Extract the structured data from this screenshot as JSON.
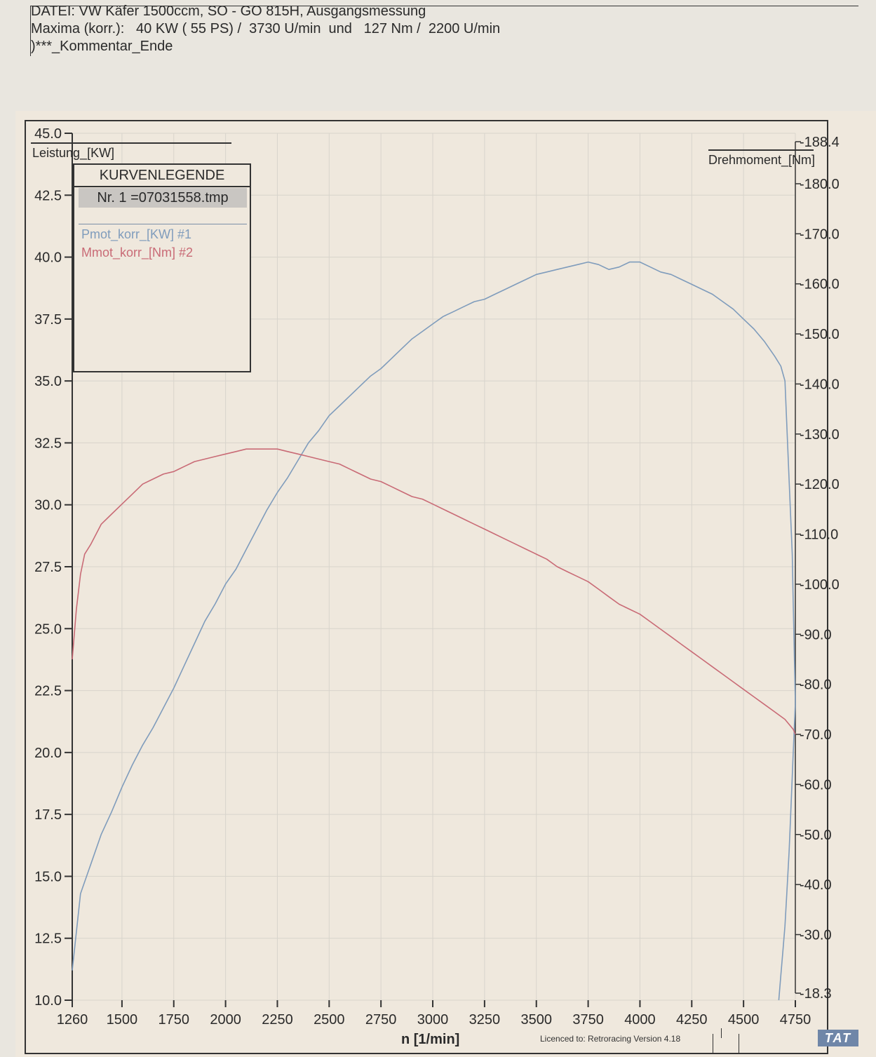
{
  "header": {
    "line1": "DATEI: VW Käfer 1500ccm, SO - GO 815H, Ausgangsmessung",
    "line2": "Maxima (korr.):   40 KW ( 55 PS) /  3730 U/min  und   127 Nm /  2200 U/min",
    "line3": ")***_Kommentar_Ende"
  },
  "legend": {
    "title": "KURVENLEGENDE",
    "file_label": "Nr. 1 =07031558.tmp",
    "series_1": "Pmot_korr_[KW] #1",
    "series_2": "Mmot_korr_[Nm] #2"
  },
  "footer": {
    "licence": "Licenced to: Retroracing   Version 4.18",
    "logo": "TAT"
  },
  "colors": {
    "power": "#7f9cbc",
    "torque": "#c96b76",
    "axis": "#333333",
    "grid": "#d8d4cc"
  },
  "chart_data": {
    "type": "line",
    "title": "",
    "xlabel": "n  [1/min]",
    "ylabel_left": "Leistung_[KW]",
    "ylabel_right": "Drehmoment_[Nm]",
    "x_ticks": [
      "1260",
      "1500",
      "1750",
      "2000",
      "2250",
      "2500",
      "2750",
      "3000",
      "3250",
      "3500",
      "3750",
      "4000",
      "4250",
      "4500",
      "4750"
    ],
    "x_tick_values": [
      1260,
      1500,
      1750,
      2000,
      2250,
      2500,
      2750,
      3000,
      3250,
      3500,
      3750,
      4000,
      4250,
      4500,
      4750
    ],
    "y_left_ticks": [
      "10.0",
      "12.5",
      "15.0",
      "17.5",
      "20.0",
      "22.5",
      "25.0",
      "27.5",
      "30.0",
      "32.5",
      "35.0",
      "37.5",
      "40.0",
      "42.5",
      "45.0"
    ],
    "y_right_ticks": [
      "-18.3",
      "-30.0",
      "-40.0",
      "-50.0",
      "-60.0",
      "-70.0",
      "-80.0",
      "-90.0",
      "-100.0",
      "-110.0",
      "-120.0",
      "-130.0",
      "-140.0",
      "-150.0",
      "-160.0",
      "-170.0",
      "-180.0",
      "-188.4"
    ],
    "y_right_tick_values": [
      18.3,
      30,
      40,
      50,
      60,
      70,
      80,
      90,
      100,
      110,
      120,
      130,
      140,
      150,
      160,
      170,
      180,
      188.4
    ],
    "xlim": [
      1260,
      4750
    ],
    "ylim_left": [
      10,
      45
    ],
    "ylim_right": [
      18.3,
      188.4
    ],
    "grid": true,
    "legend_position": "top-left",
    "series": [
      {
        "name": "Pmot_korr_[KW] #1",
        "axis": "left",
        "x": [
          1260,
          1300,
          1350,
          1400,
          1450,
          1500,
          1550,
          1600,
          1650,
          1700,
          1750,
          1800,
          1850,
          1900,
          1950,
          2000,
          2050,
          2100,
          2150,
          2200,
          2250,
          2300,
          2350,
          2400,
          2450,
          2500,
          2550,
          2600,
          2650,
          2700,
          2750,
          2800,
          2850,
          2900,
          2950,
          3000,
          3050,
          3100,
          3150,
          3200,
          3250,
          3300,
          3350,
          3400,
          3450,
          3500,
          3550,
          3600,
          3650,
          3700,
          3750,
          3800,
          3850,
          3900,
          3950,
          4000,
          4050,
          4100,
          4150,
          4200,
          4250,
          4300,
          4350,
          4400,
          4450,
          4500,
          4550,
          4600,
          4650,
          4680,
          4700,
          4720,
          4735,
          4740,
          4745,
          4750,
          4740,
          4730,
          4720,
          4710,
          4700,
          4690,
          4680,
          4670
        ],
        "values": [
          11.2,
          14.3,
          15.5,
          16.7,
          17.6,
          18.6,
          19.5,
          20.3,
          21.0,
          21.8,
          22.6,
          23.5,
          24.4,
          25.3,
          26.0,
          26.8,
          27.4,
          28.2,
          29.0,
          29.8,
          30.5,
          31.1,
          31.8,
          32.5,
          33.0,
          33.6,
          34.0,
          34.4,
          34.8,
          35.2,
          35.5,
          35.9,
          36.3,
          36.7,
          37.0,
          37.3,
          37.6,
          37.8,
          38.0,
          38.2,
          38.3,
          38.5,
          38.7,
          38.9,
          39.1,
          39.3,
          39.4,
          39.5,
          39.6,
          39.7,
          39.8,
          39.7,
          39.5,
          39.6,
          39.8,
          39.8,
          39.6,
          39.4,
          39.3,
          39.1,
          38.9,
          38.7,
          38.5,
          38.2,
          37.9,
          37.5,
          37.1,
          36.6,
          36.0,
          35.6,
          35.0,
          31.0,
          28.0,
          26.0,
          24.0,
          22.0,
          20.0,
          18.0,
          16.0,
          14.5,
          13.0,
          12.0,
          11.0,
          10.0
        ]
      },
      {
        "name": "Mmot_korr_[Nm] #2",
        "axis": "right",
        "x": [
          1260,
          1280,
          1300,
          1320,
          1350,
          1400,
          1450,
          1500,
          1550,
          1600,
          1650,
          1700,
          1750,
          1800,
          1850,
          1900,
          1950,
          2000,
          2050,
          2100,
          2150,
          2200,
          2250,
          2300,
          2350,
          2400,
          2450,
          2500,
          2550,
          2600,
          2650,
          2700,
          2750,
          2800,
          2850,
          2900,
          2950,
          3000,
          3050,
          3100,
          3150,
          3200,
          3250,
          3300,
          3350,
          3400,
          3450,
          3500,
          3550,
          3600,
          3650,
          3700,
          3750,
          3800,
          3850,
          3900,
          3950,
          4000,
          4050,
          4100,
          4150,
          4200,
          4250,
          4300,
          4350,
          4400,
          4450,
          4500,
          4550,
          4600,
          4650,
          4700,
          4720,
          4740,
          4750
        ],
        "values": [
          85,
          95,
          102,
          106,
          108,
          112,
          114,
          116,
          118,
          120,
          121,
          122,
          122.5,
          123.5,
          124.5,
          125,
          125.5,
          126,
          126.5,
          127,
          127,
          127,
          127,
          126.5,
          126,
          125.5,
          125,
          124.5,
          124,
          123,
          122,
          121,
          120.5,
          119.5,
          118.5,
          117.5,
          117,
          116,
          115,
          114,
          113,
          112,
          111,
          110,
          109,
          108,
          107,
          106,
          105,
          103.5,
          102.5,
          101.5,
          100.5,
          99,
          97.5,
          96,
          95,
          94,
          92.5,
          91,
          89.5,
          88,
          86.5,
          85,
          83.5,
          82,
          80.5,
          79,
          77.5,
          76,
          74.5,
          73,
          72,
          71,
          70
        ]
      }
    ]
  }
}
